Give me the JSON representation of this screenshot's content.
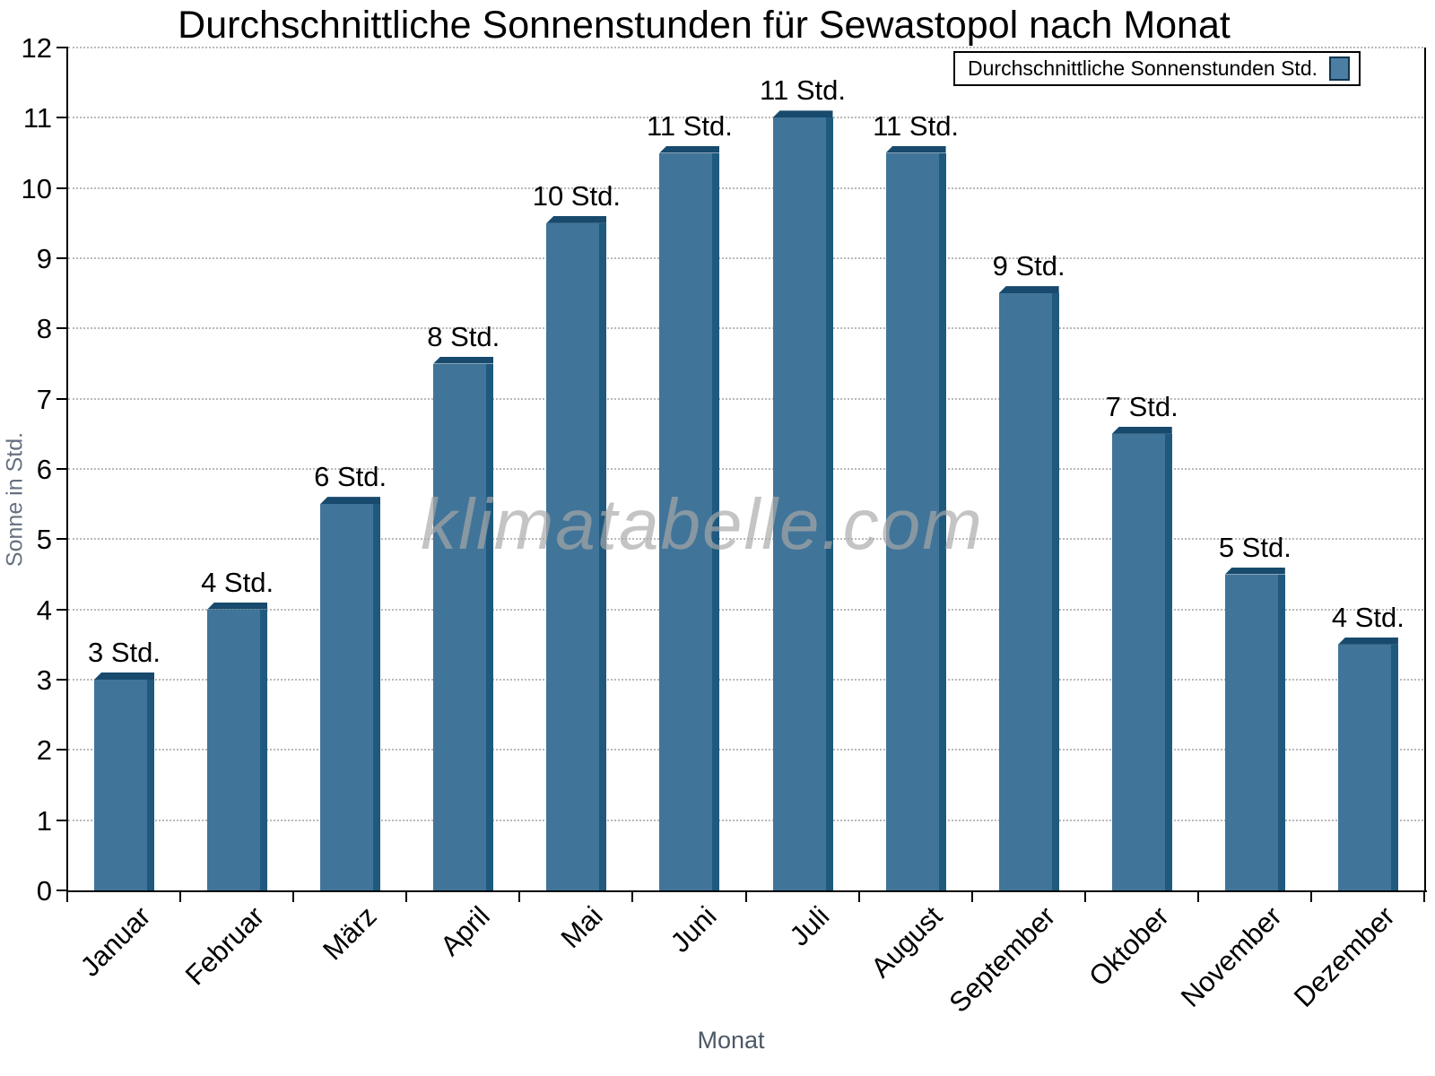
{
  "chart_data": {
    "type": "bar",
    "title": "Durchschnittliche Sonnenstunden für Sewastopol nach Monat",
    "xlabel": "Monat",
    "ylabel": "Sonne in Std.",
    "categories": [
      "Januar",
      "Februar",
      "März",
      "April",
      "Mai",
      "Juni",
      "Juli",
      "August",
      "September",
      "Oktober",
      "November",
      "Dezember"
    ],
    "values": [
      3,
      4,
      5.5,
      7.5,
      9.5,
      10.5,
      11,
      10.5,
      8.5,
      6.5,
      4.5,
      3.5
    ],
    "bar_labels": [
      "3 Std.",
      "4 Std.",
      "6 Std.",
      "8 Std.",
      "10 Std.",
      "11 Std.",
      "11 Std.",
      "11 Std.",
      "9 Std.",
      "7 Std.",
      "5 Std.",
      "4 Std."
    ],
    "ylim": [
      0,
      12
    ],
    "ytick_step": 1,
    "yticks": [
      0,
      1,
      2,
      3,
      4,
      5,
      6,
      7,
      8,
      9,
      10,
      11,
      12
    ],
    "grid": "horizontal-dotted",
    "legend": {
      "label": "Durchschnittliche Sonnenstunden Std.",
      "position": "top-right"
    },
    "colors": {
      "bar_face": "#417499",
      "bar_top": "#174a6c",
      "bar_side": "#1f5a7e",
      "legend_swatch": "#4c7ea4",
      "grid": "#b9b9b9",
      "axis": "#000000",
      "ylabel_text": "#667080",
      "xlabel_text": "#4d5866",
      "watermark_text": "#a9a9a9"
    }
  },
  "watermark": "klimatabelle.com"
}
